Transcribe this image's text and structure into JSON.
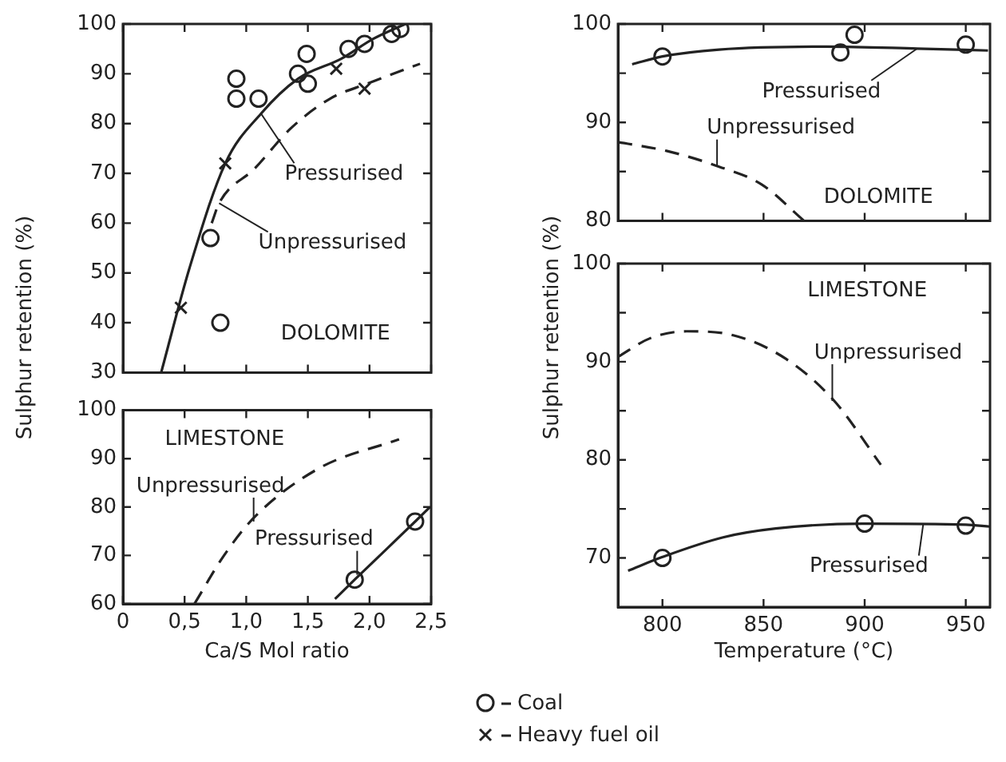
{
  "chart_data": [
    {
      "type": "line",
      "ylabel": "Sulphur retention (%)",
      "xlim": [
        0,
        2.5
      ],
      "xticks": [
        0,
        0.5,
        1,
        1.5,
        2,
        2.5
      ],
      "ylim": [
        30,
        100
      ],
      "yticks": [
        30,
        40,
        50,
        60,
        70,
        80,
        90,
        100
      ],
      "tick_labels": "y",
      "legend": "bottom",
      "annotations": [
        {
          "text": "Pressurised",
          "x": 1.12,
          "y": 82
        },
        {
          "text": "Unpressurised",
          "x": 0.78,
          "y": 64
        },
        "DOLOMITE"
      ],
      "series": [
        {
          "color": "#222222",
          "line_style": "solid",
          "marker": "none",
          "x": [
            0.31,
            0.54,
            0.83,
            1.12,
            1.42,
            1.77,
            2.03,
            2.29
          ],
          "values": [
            30,
            51,
            72,
            82,
            89,
            93,
            97,
            100
          ]
        },
        {
          "color": "#222222",
          "line_style": "dashed",
          "marker": "none",
          "x": [
            0.72,
            0.78,
            1.07,
            1.36,
            1.68,
            1.98,
            2.41
          ],
          "values": [
            60,
            64,
            71,
            79,
            85,
            88,
            92
          ]
        },
        {
          "type": "scatter",
          "name": "Coal",
          "color": "#222222",
          "marker": "circle",
          "x": [
            0.71,
            0.79,
            0.92,
            0.92,
            1.1,
            1.42,
            1.49,
            1.5,
            1.83,
            1.96,
            2.18,
            2.25
          ],
          "values": [
            57,
            40,
            89,
            85,
            85,
            90,
            94,
            88,
            95,
            96,
            98,
            99
          ]
        },
        {
          "type": "scatter",
          "name": "Heavy fuel oil",
          "color": "#222222",
          "marker": "cross",
          "x": [
            0.47,
            0.83,
            1.73,
            1.96
          ],
          "values": [
            43,
            72,
            91,
            87
          ]
        }
      ]
    },
    {
      "type": "line",
      "xlabel": "Ca/S Mol ratio",
      "xlim": [
        0,
        2.5
      ],
      "xticks": [
        0,
        {
          "value": 0.5,
          "label": "0,5"
        },
        {
          "value": 1,
          "label": "1,0"
        },
        {
          "value": 1.5,
          "label": "1,5"
        },
        {
          "value": 2,
          "label": "2,0"
        },
        {
          "value": 2.5,
          "label": "2,5"
        }
      ],
      "ylim": [
        60,
        100
      ],
      "yticks": [
        60,
        70,
        80,
        90,
        100
      ],
      "annotations": [
        {
          "text": "Unpressurised",
          "x": 1.06,
          "y": 77
        },
        {
          "text": "Pressurised",
          "x": 1.9,
          "y": 66
        },
        "LIMESTONE"
      ],
      "series": [
        {
          "color": "#222222",
          "line_style": "dashed",
          "marker": "none",
          "x": [
            0.58,
            0.82,
            1.07,
            1.59,
            2.24
          ],
          "values": [
            60,
            70,
            78,
            88,
            94
          ]
        },
        {
          "color": "#222222",
          "line_style": "solid",
          "marker": "none",
          "x": [
            1.72,
            1.88,
            2.37,
            2.49
          ],
          "values": [
            61,
            65,
            77,
            80
          ]
        },
        {
          "type": "scatter",
          "color": "#222222",
          "marker": "circle",
          "x": [
            1.88,
            2.37
          ],
          "values": [
            65,
            77
          ]
        }
      ]
    },
    {
      "type": "line",
      "ylabel": "Sulphur retention (%)",
      "xlim": [
        778,
        962
      ],
      "xticks": [
        800,
        850,
        900,
        950
      ],
      "ylim": [
        80,
        100
      ],
      "yticks": [
        80,
        {
          "value": 85,
          "label": null
        },
        90,
        {
          "value": 95,
          "label": null
        },
        100
      ],
      "tick_labels": "y",
      "annotations": [
        {
          "text": "Pressurised",
          "x": 926,
          "y": 97.5
        },
        {
          "text": "Unpressurised",
          "x": 827,
          "y": 85.5
        },
        "DOLOMITE"
      ],
      "series": [
        {
          "color": "#222222",
          "line_style": "solid",
          "marker": "none",
          "x": [
            785,
            800,
            828,
            881,
            926,
            961
          ],
          "values": [
            95.9,
            96.7,
            97.4,
            97.7,
            97.5,
            97.3
          ]
        },
        {
          "color": "#222222",
          "line_style": "dashed",
          "marker": "none",
          "x": [
            778,
            802,
            828,
            849,
            870
          ],
          "values": [
            88,
            87.1,
            85.5,
            83.7,
            80
          ]
        },
        {
          "type": "scatter",
          "color": "#222222",
          "marker": "circle",
          "x": [
            800,
            888,
            895,
            950
          ],
          "values": [
            96.7,
            97.1,
            98.9,
            97.9
          ]
        }
      ]
    },
    {
      "type": "line",
      "xlabel": "Temperature (°C)",
      "xlim": [
        778,
        962
      ],
      "xticks": [
        800,
        850,
        900,
        950
      ],
      "ylim": [
        65,
        100
      ],
      "yticks": [
        70,
        {
          "value": 75,
          "label": null
        },
        80,
        {
          "value": 85,
          "label": null
        },
        90,
        {
          "value": 95,
          "label": null
        },
        100
      ],
      "annotations": [
        {
          "text": "Unpressurised",
          "x": 884,
          "y": 86
        },
        {
          "text": "Pressurised",
          "x": 929,
          "y": 73.5
        },
        "LIMESTONE"
      ],
      "series": [
        {
          "color": "#222222",
          "line_style": "dashed",
          "marker": "none",
          "x": [
            778,
            794,
            812,
            835,
            861,
            885,
            908
          ],
          "values": [
            90.5,
            92.4,
            93.1,
            92.7,
            90.3,
            86,
            79.5
          ]
        },
        {
          "color": "#222222",
          "line_style": "solid",
          "marker": "none",
          "x": [
            783,
            800,
            830,
            856,
            899,
            950,
            962
          ],
          "values": [
            68.7,
            70.1,
            72.1,
            73,
            73.5,
            73.4,
            73.2
          ]
        },
        {
          "type": "scatter",
          "color": "#222222",
          "marker": "circle",
          "x": [
            800,
            900,
            950
          ],
          "values": [
            70,
            73.5,
            73.3
          ]
        }
      ]
    }
  ]
}
